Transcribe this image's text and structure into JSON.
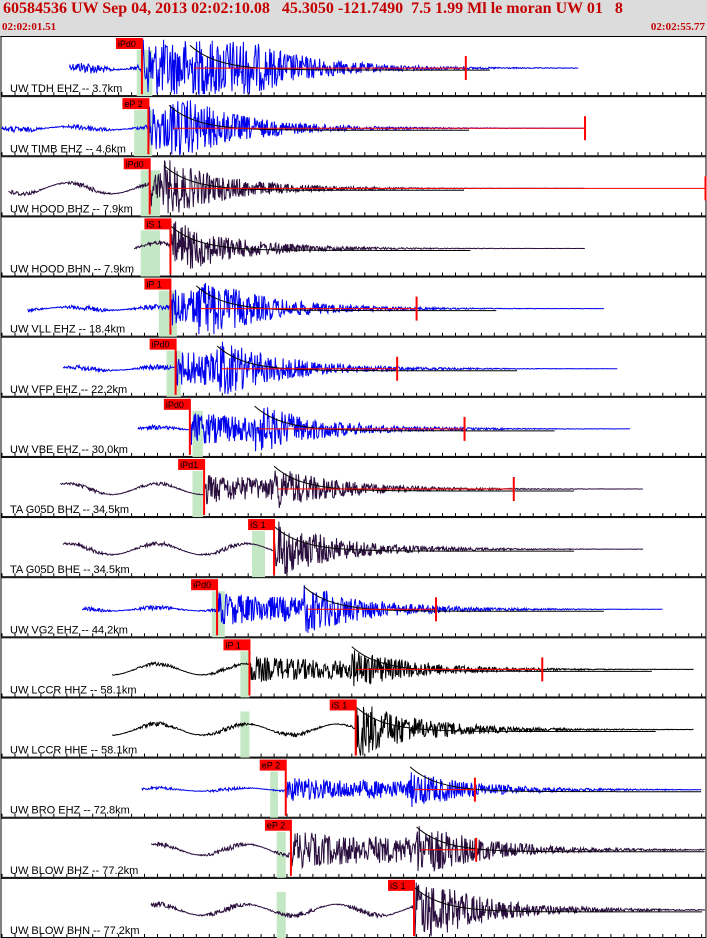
{
  "header": {
    "title": "60584536 UW Sep 04, 2013 02:02:10.08   45.3050 -121.7490  7.5 1.99 Ml le moran UW 01   8",
    "start_time": "02:02:01.51",
    "end_time": "02:02:55.77"
  },
  "colors": {
    "header_bg": "#dcdcdc",
    "header_text": "#c40000",
    "blue_trace": "#0000ee",
    "dark_trace": "#2a0f3e",
    "black_trace": "#000000",
    "pick_red": "#ff0000",
    "window_green": "#c4e8c4",
    "coda_line": "#000000"
  },
  "chart_data": {
    "type": "seismogram",
    "x_range_s": [
      0,
      54.26
    ],
    "time_tick_interval_s": 1,
    "traces": [
      {
        "label": "UW TDH EHZ -- 3.7km",
        "color": "blue",
        "pick": "iPd0",
        "pick_s": 10.8,
        "sig_start_s": 5.2,
        "sig_end_s": 44.5,
        "amp": 1.0,
        "s_s": 14.5,
        "end_mark_s": 35.8,
        "green_s": [
          10.4,
          11.6
        ]
      },
      {
        "label": "UW TIMB EHZ -- 4.6km",
        "color": "blue",
        "pick": "eP 2",
        "pick_s": 11.3,
        "sig_start_s": 0,
        "sig_end_s": 45.0,
        "amp": 0.55,
        "s_s": 12.9,
        "end_mark_s": 45.0,
        "green_s": [
          10.2,
          11.6
        ]
      },
      {
        "label": "UW HOOD BHZ -- 7.9km",
        "color": "dark",
        "pick": "iPd0",
        "pick_s": 11.4,
        "sig_start_s": 0.5,
        "sig_end_s": 45.0,
        "amp": 0.42,
        "s_s": 12.5,
        "end_mark_s": 54.3,
        "green_s": [
          10.7,
          12.2
        ]
      },
      {
        "label": "UW HOOD BHN -- 7.9km",
        "color": "dark",
        "pick": "iS 1",
        "pick_s": 13.0,
        "sig_start_s": 10.2,
        "sig_end_s": 45.0,
        "amp": 0.38,
        "s_s": 13.0,
        "end_mark_s": null,
        "green_s": [
          10.7,
          12.2
        ]
      },
      {
        "label": "UW VLL EHZ -- 18.4km",
        "color": "blue",
        "pick": "iP 1",
        "pick_s": 13.0,
        "sig_start_s": 2.0,
        "sig_end_s": 46.5,
        "amp": 0.5,
        "s_s": 15.0,
        "end_mark_s": 32.0,
        "green_s": [
          12.1,
          13.5
        ]
      },
      {
        "label": "UW VFP EHZ -- 22.2km",
        "color": "blue",
        "pick": "iPd0",
        "pick_s": 13.4,
        "sig_start_s": 4.7,
        "sig_end_s": 47.5,
        "amp": 0.45,
        "s_s": 16.6,
        "end_mark_s": 30.5,
        "green_s": [
          12.7,
          13.8
        ]
      },
      {
        "label": "UW VBE EHZ -- 30.0km",
        "color": "blue",
        "pick": "iPd0",
        "pick_s": 14.5,
        "sig_start_s": 10.5,
        "sig_end_s": 48.5,
        "amp": 0.4,
        "s_s": 19.5,
        "end_mark_s": 35.7,
        "green_s": [
          14.7,
          15.5
        ]
      },
      {
        "label": "TA G05D BHZ -- 34.5km",
        "color": "dark",
        "pick": "iPd1",
        "pick_s": 15.6,
        "sig_start_s": 4.5,
        "sig_end_s": 49.5,
        "amp": 0.35,
        "s_s": 21.0,
        "end_mark_s": 39.5,
        "green_s": [
          14.7,
          15.5
        ]
      },
      {
        "label": "TA G05D BHE -- 34.5km",
        "color": "dark",
        "pick": "iS 1",
        "pick_s": 21.0,
        "sig_start_s": 4.7,
        "sig_end_s": 49.5,
        "amp": 0.4,
        "s_s": 21.0,
        "end_mark_s": null,
        "green_s": [
          19.3,
          20.3
        ]
      },
      {
        "label": "UW VG2 EHZ -- 44.2km",
        "color": "blue",
        "pick": "iPd0",
        "pick_s": 16.6,
        "sig_start_s": 6.2,
        "sig_end_s": 51.0,
        "amp": 0.4,
        "s_s": 23.3,
        "end_mark_s": 33.5,
        "green_s": [
          16.2,
          17.2
        ]
      },
      {
        "label": "UW LCCR HHZ -- 58.1km",
        "color": "black",
        "pick": "iP 1",
        "pick_s": 19.1,
        "sig_start_s": 8.5,
        "sig_end_s": 53.4,
        "amp": 0.32,
        "s_s": 27.0,
        "end_mark_s": 41.7,
        "green_s": [
          18.4,
          19.1
        ]
      },
      {
        "label": "UW LCCR HHE -- 58.1km",
        "color": "black",
        "pick": "iS 1",
        "pick_s": 27.3,
        "sig_start_s": 8.5,
        "sig_end_s": 53.4,
        "amp": 0.4,
        "s_s": 27.3,
        "end_mark_s": null,
        "green_s": [
          18.4,
          19.1
        ]
      },
      {
        "label": "UW BRO EHZ -- 72.8km",
        "color": "blue",
        "pick": "eP 2",
        "pick_s": 21.9,
        "sig_start_s": 10.8,
        "sig_end_s": 54.0,
        "amp": 0.3,
        "s_s": 31.5,
        "end_mark_s": 36.5,
        "green_s": [
          20.7,
          21.3
        ]
      },
      {
        "label": "UW BLOW BHZ -- 77.2km",
        "color": "dark",
        "pick": "eP 2",
        "pick_s": 22.3,
        "sig_start_s": 11.5,
        "sig_end_s": 54.26,
        "amp": 0.45,
        "s_s": 32.0,
        "end_mark_s": 36.6,
        "green_s": [
          21.2,
          21.9
        ]
      },
      {
        "label": "UW BLOW BHN -- 77.2km",
        "color": "dark",
        "pick": "iS 1",
        "pick_s": 31.8,
        "sig_start_s": 11.5,
        "sig_end_s": 54.26,
        "amp": 0.5,
        "s_s": 31.8,
        "end_mark_s": null,
        "green_s": [
          21.2,
          21.9
        ]
      }
    ]
  }
}
